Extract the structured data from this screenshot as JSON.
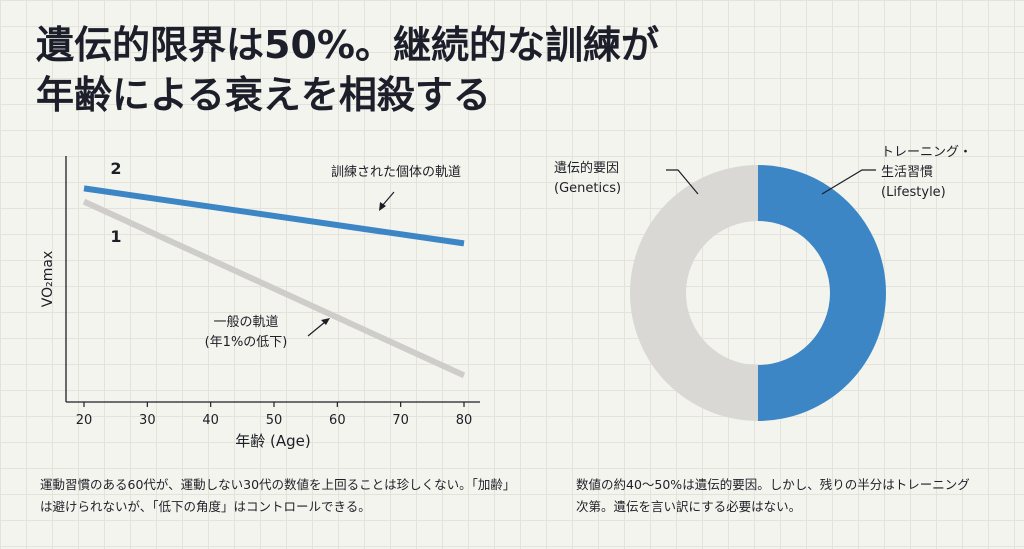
{
  "headline": {
    "line1": "遺伝的限界は50%。継続的な訓練が",
    "line2": "年齢による衰えを相殺する"
  },
  "chart_data": [
    {
      "type": "line",
      "ylabel": "VO₂max",
      "xlabel": "年齢 (Age)",
      "x_ticks": [
        20,
        30,
        40,
        50,
        60,
        70,
        80
      ],
      "xlim": [
        20,
        80
      ],
      "series": [
        {
          "id": "2",
          "name": "訓練された個体の軌道",
          "color": "#3d86c6",
          "x": [
            20,
            80
          ],
          "y": [
            0.88,
            0.63
          ]
        },
        {
          "id": "1",
          "name": "一般の軌道",
          "annotation_sub": "(年1%の低下)",
          "color": "#cfcdc9",
          "x": [
            20,
            80
          ],
          "y": [
            0.82,
            0.03
          ]
        }
      ]
    },
    {
      "type": "pie",
      "donut": true,
      "slices": [
        {
          "label_line1": "遺伝的要因",
          "label_line2": "(Genetics)",
          "value": 50,
          "color": "#d9d8d5"
        },
        {
          "label_line1": "トレーニング・",
          "label_line2": "生活習慣",
          "label_line3": "(Lifestyle)",
          "value": 50,
          "color": "#3d86c6"
        }
      ]
    }
  ],
  "captions": {
    "left": "運動習慣のある60代が、運動しない30代の数値を上回ることは珍しくない。「加齢」は避けられないが、「低下の角度」はコントロールできる。",
    "right": "数値の約40〜50%は遺伝的要因。しかし、残りの半分はトレーニング次第。遺伝を言い訳にする必要はない。"
  }
}
